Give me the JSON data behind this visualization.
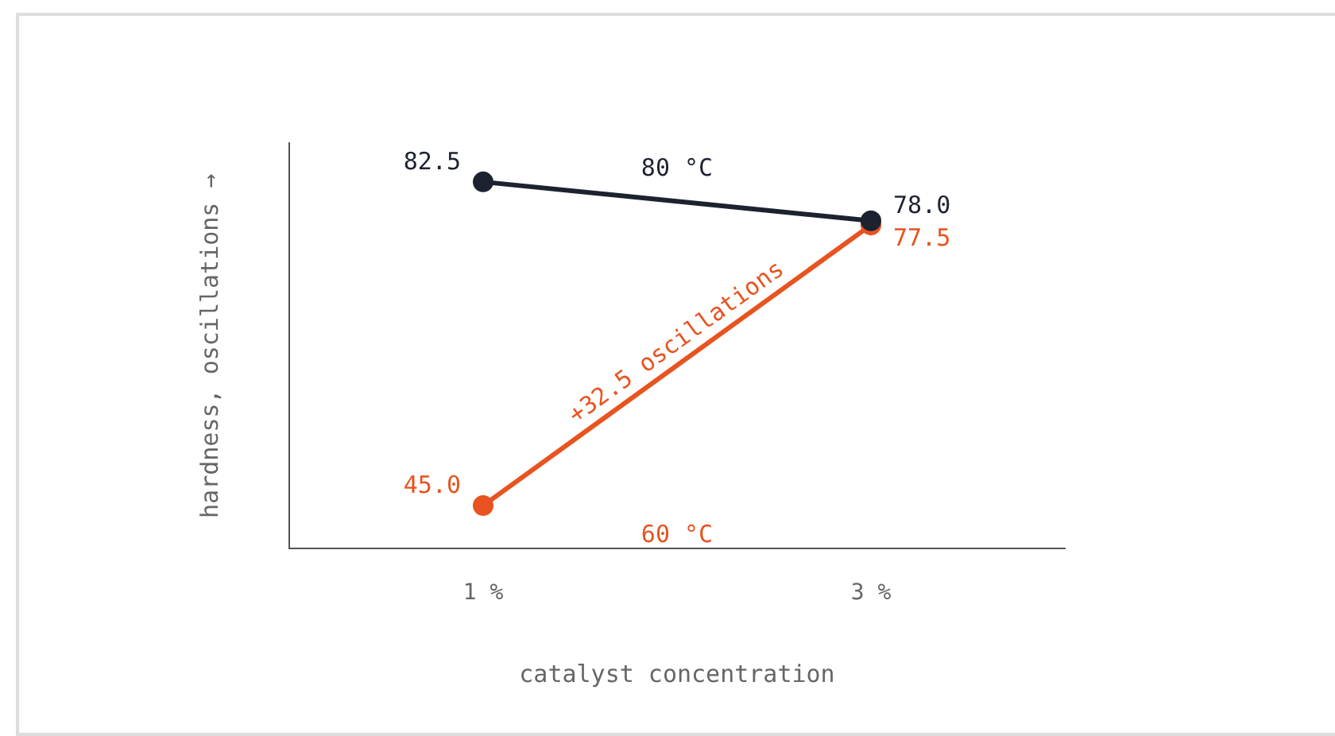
{
  "chart_data": {
    "type": "line",
    "xlabel": "catalyst concentration",
    "ylabel": "hardness, oscillations →",
    "categories": [
      "1 %",
      "3 %"
    ],
    "series": [
      {
        "name": "80 °C",
        "color": "#1d2230",
        "values": [
          82.5,
          78.0
        ],
        "value_labels": [
          "82.5",
          "78.0"
        ]
      },
      {
        "name": "60 °C",
        "color": "#e8531f",
        "values": [
          45.0,
          77.5
        ],
        "value_labels": [
          "45.0",
          "77.5"
        ]
      }
    ],
    "ylim": [
      40,
      87
    ],
    "tick_labels": "x",
    "grid": false,
    "legend": false,
    "marker": "circle",
    "line_style": "solid",
    "annotations": [
      "+32.5 oscillations"
    ]
  }
}
